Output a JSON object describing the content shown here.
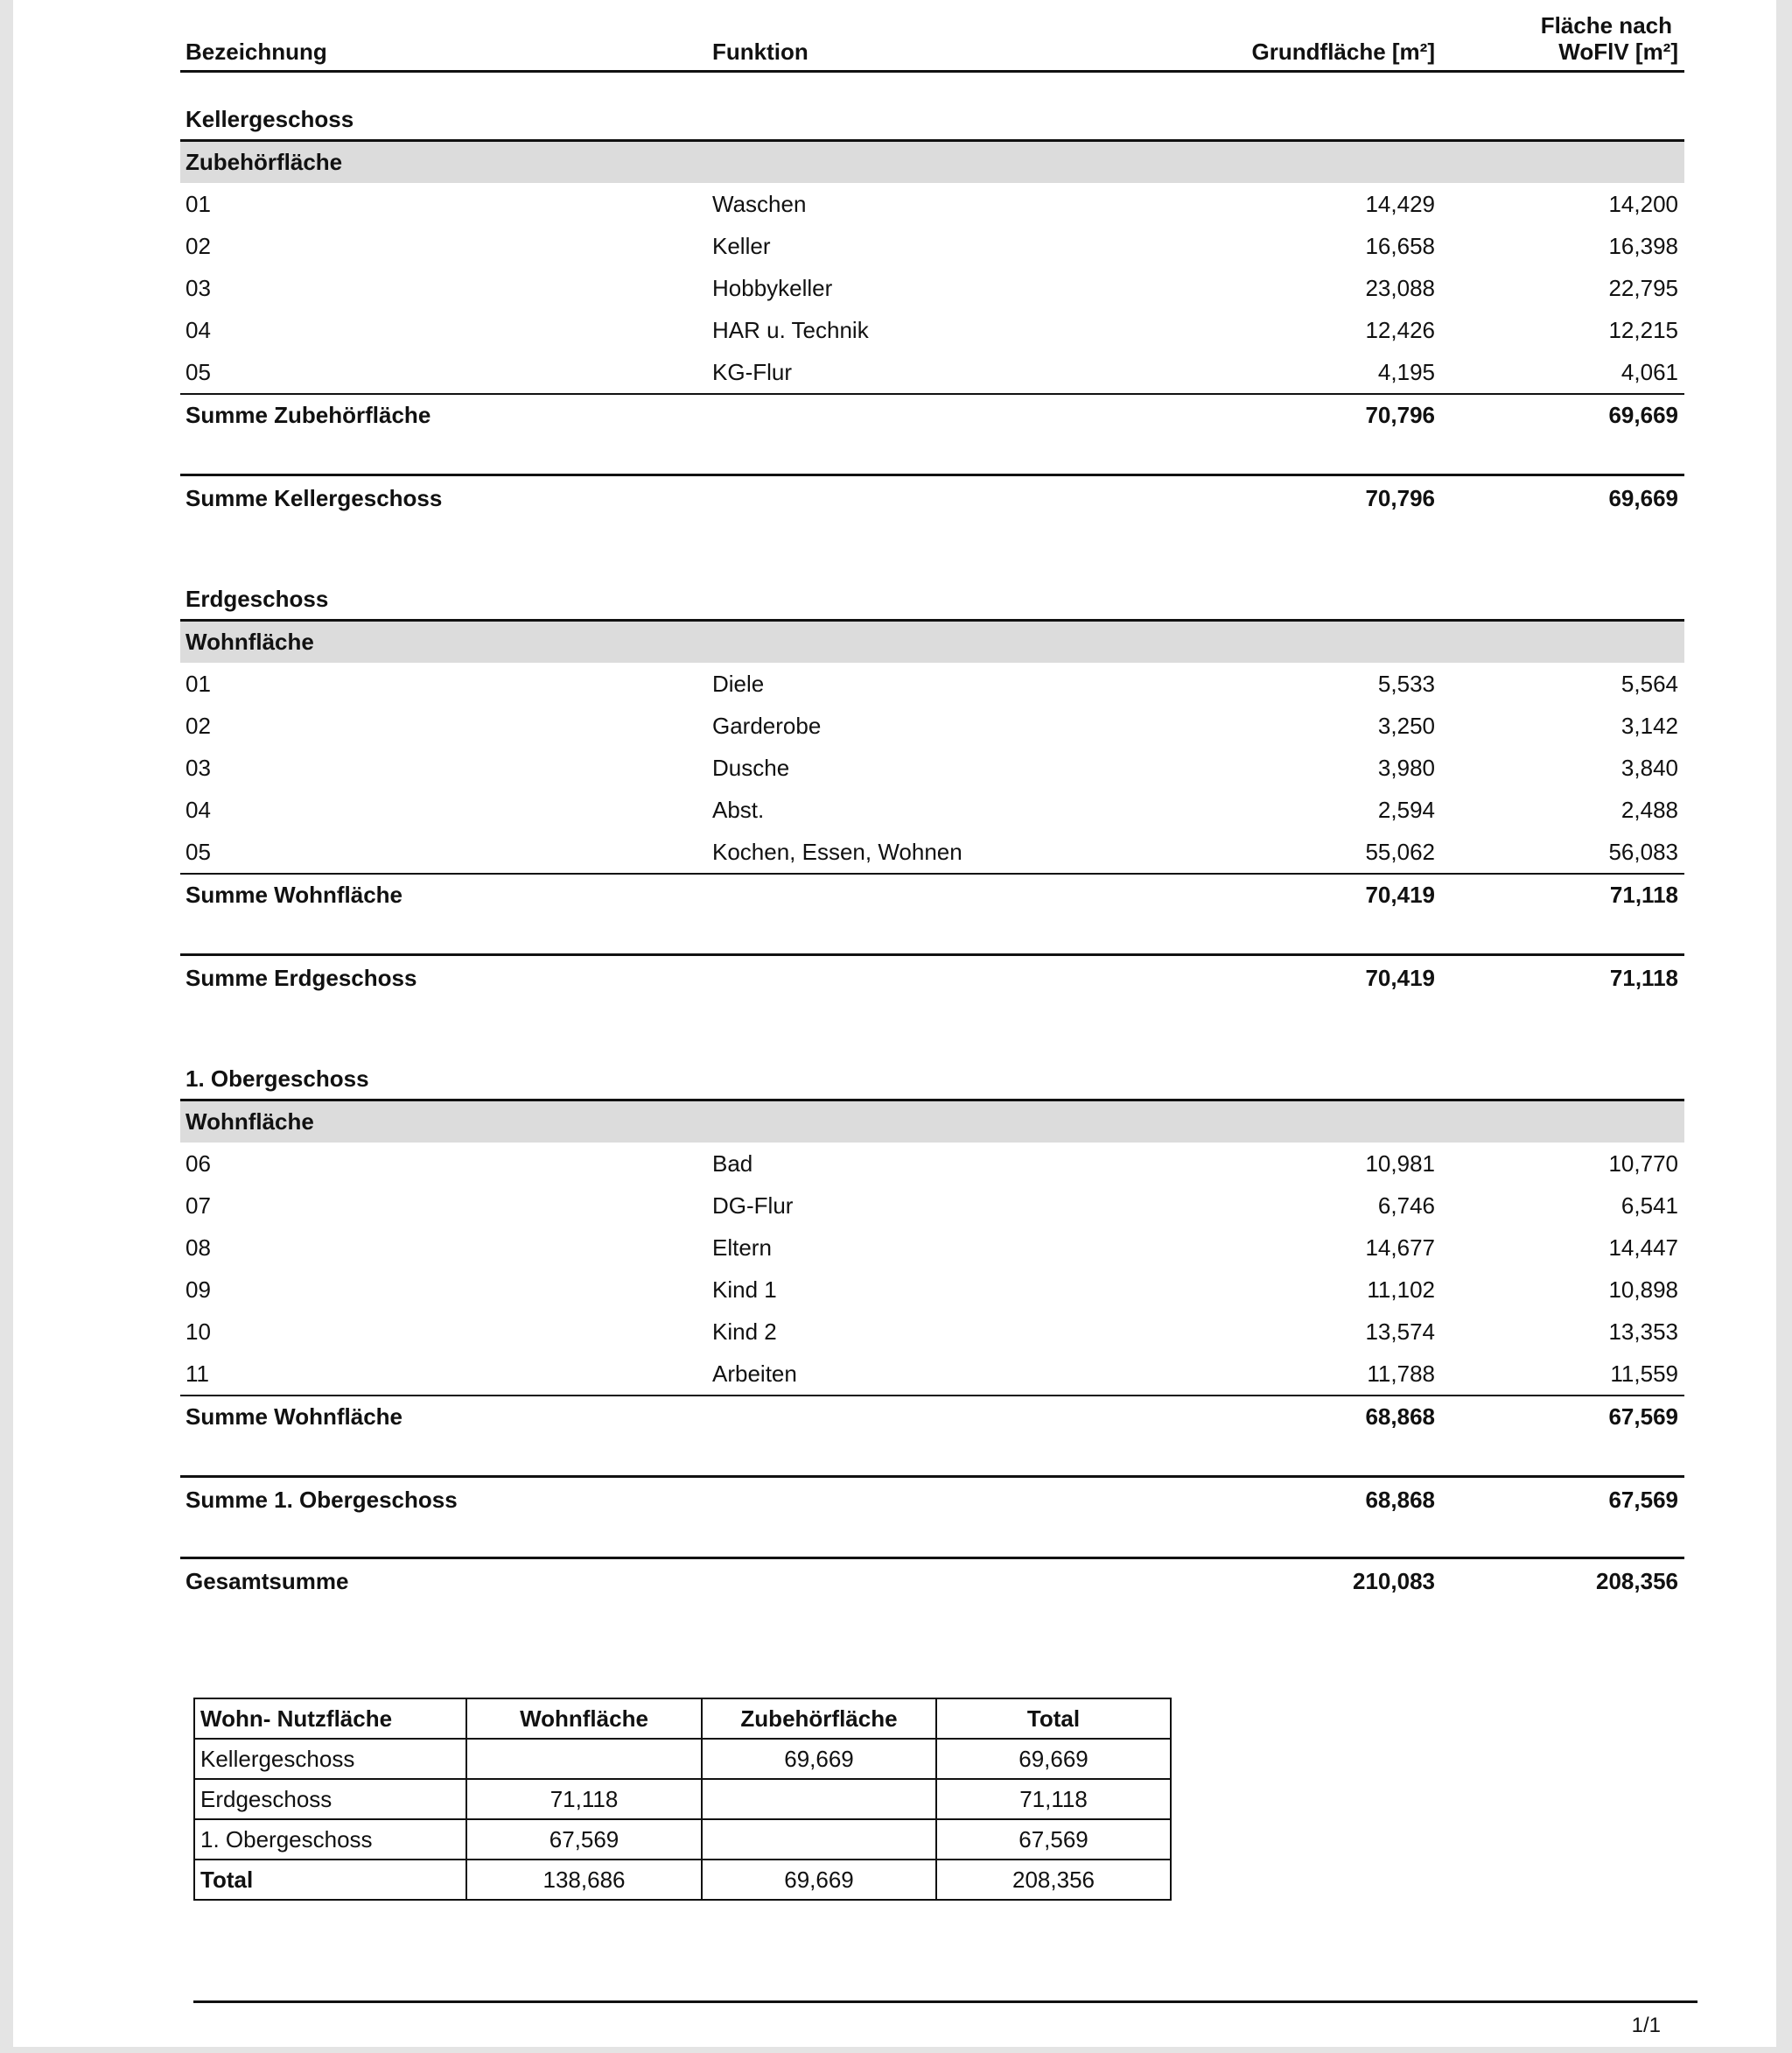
{
  "header": {
    "bezeichnung": "Bezeichnung",
    "funktion": "Funktion",
    "grundflaeche": "Grundfläche [m²]",
    "wofiv_line1": "Fläche nach",
    "wofiv_line2": "WoFlV [m²]"
  },
  "floors": [
    {
      "name": "Kellergeschoss",
      "groups": [
        {
          "name": "Zubehörfläche",
          "rows": [
            {
              "nr": "01",
              "funktion": "Waschen",
              "grund": "14,429",
              "wofiv": "14,200"
            },
            {
              "nr": "02",
              "funktion": "Keller",
              "grund": "16,658",
              "wofiv": "16,398"
            },
            {
              "nr": "03",
              "funktion": "Hobbykeller",
              "grund": "23,088",
              "wofiv": "22,795"
            },
            {
              "nr": "04",
              "funktion": "HAR u. Technik",
              "grund": "12,426",
              "wofiv": "12,215"
            },
            {
              "nr": "05",
              "funktion": "KG-Flur",
              "grund": "4,195",
              "wofiv": "4,061"
            }
          ],
          "sum_label": "Summe Zubehörfläche",
          "sum_grund": "70,796",
          "sum_wofiv": "69,669"
        }
      ],
      "sum_label": "Summe Kellergeschoss",
      "sum_grund": "70,796",
      "sum_wofiv": "69,669"
    },
    {
      "name": "Erdgeschoss",
      "groups": [
        {
          "name": "Wohnfläche",
          "rows": [
            {
              "nr": "01",
              "funktion": "Diele",
              "grund": "5,533",
              "wofiv": "5,564"
            },
            {
              "nr": "02",
              "funktion": "Garderobe",
              "grund": "3,250",
              "wofiv": "3,142"
            },
            {
              "nr": "03",
              "funktion": "Dusche",
              "grund": "3,980",
              "wofiv": "3,840"
            },
            {
              "nr": "04",
              "funktion": "Abst.",
              "grund": "2,594",
              "wofiv": "2,488"
            },
            {
              "nr": "05",
              "funktion": "Kochen, Essen, Wohnen",
              "grund": "55,062",
              "wofiv": "56,083"
            }
          ],
          "sum_label": "Summe Wohnfläche",
          "sum_grund": "70,419",
          "sum_wofiv": "71,118"
        }
      ],
      "sum_label": "Summe Erdgeschoss",
      "sum_grund": "70,419",
      "sum_wofiv": "71,118"
    },
    {
      "name": "1. Obergeschoss",
      "groups": [
        {
          "name": "Wohnfläche",
          "rows": [
            {
              "nr": "06",
              "funktion": "Bad",
              "grund": "10,981",
              "wofiv": "10,770"
            },
            {
              "nr": "07",
              "funktion": "DG-Flur",
              "grund": "6,746",
              "wofiv": "6,541"
            },
            {
              "nr": "08",
              "funktion": "Eltern",
              "grund": "14,677",
              "wofiv": "14,447"
            },
            {
              "nr": "09",
              "funktion": "Kind 1",
              "grund": "11,102",
              "wofiv": "10,898"
            },
            {
              "nr": "10",
              "funktion": "Kind 2",
              "grund": "13,574",
              "wofiv": "13,353"
            },
            {
              "nr": "11",
              "funktion": "Arbeiten",
              "grund": "11,788",
              "wofiv": "11,559"
            }
          ],
          "sum_label": "Summe Wohnfläche",
          "sum_grund": "68,868",
          "sum_wofiv": "67,569"
        }
      ],
      "sum_label": "Summe 1. Obergeschoss",
      "sum_grund": "68,868",
      "sum_wofiv": "67,569"
    }
  ],
  "total": {
    "label": "Gesamtsumme",
    "grund": "210,083",
    "wofiv": "208,356"
  },
  "summary": {
    "headers": [
      "Wohn- Nutzfläche",
      "Wohnfläche",
      "Zubehörfläche",
      "Total"
    ],
    "rows": [
      [
        "Kellergeschoss",
        "",
        "69,669",
        "69,669"
      ],
      [
        "Erdgeschoss",
        "71,118",
        "",
        "71,118"
      ],
      [
        "1. Obergeschoss",
        "67,569",
        "",
        "67,569"
      ],
      [
        "Total",
        "138,686",
        "69,669",
        "208,356"
      ]
    ]
  },
  "footer": {
    "page": "1/1"
  }
}
